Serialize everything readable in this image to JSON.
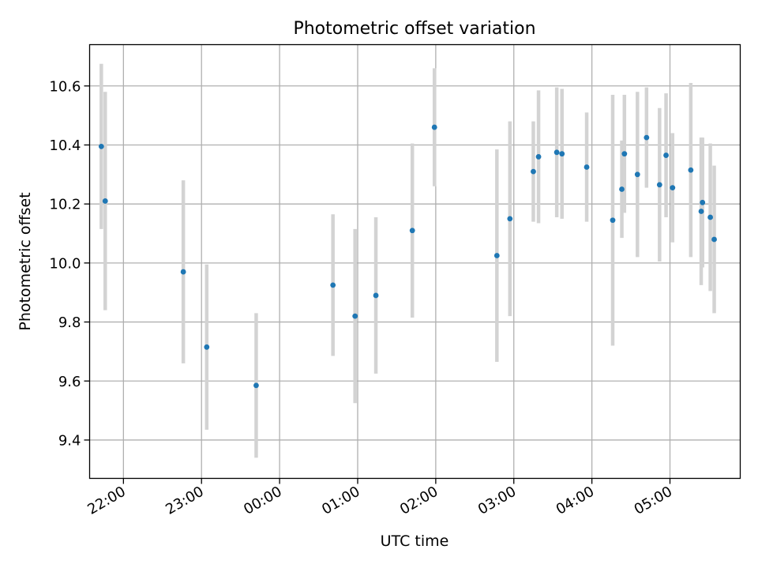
{
  "chart_data": {
    "type": "scatter",
    "title": "Photometric offset variation",
    "xlabel": "UTC time",
    "ylabel": "Photometric offset",
    "grid": true,
    "legend": "none",
    "x_tick_labels": [
      "22:00",
      "23:00",
      "00:00",
      "01:00",
      "02:00",
      "03:00",
      "04:00",
      "05:00"
    ],
    "y_ticks": [
      9.4,
      9.6,
      9.8,
      10.0,
      10.2,
      10.4,
      10.6
    ],
    "y_tick_labels": [
      "9.4",
      "9.6",
      "9.8",
      "10.0",
      "10.2",
      "10.4",
      "10.6"
    ],
    "xlim": [
      "21:34",
      "05:54"
    ],
    "ylim": [
      9.27,
      10.74
    ],
    "colors": {
      "point": "#1f77b4",
      "errorbar": "#d3d3d3",
      "grid": "#b0b0b0"
    },
    "series": [
      {
        "points": [
          {
            "x": "21:43",
            "y": 10.395,
            "yerr": 0.28
          },
          {
            "x": "21:46",
            "y": 10.21,
            "yerr": 0.37
          },
          {
            "x": "22:46",
            "y": 9.97,
            "yerr": 0.31
          },
          {
            "x": "23:04",
            "y": 9.715,
            "yerr": 0.28
          },
          {
            "x": "23:42",
            "y": 9.585,
            "yerr": 0.245
          },
          {
            "x": "00:41",
            "y": 9.925,
            "yerr": 0.24
          },
          {
            "x": "00:58",
            "y": 9.82,
            "yerr": 0.295
          },
          {
            "x": "01:14",
            "y": 9.89,
            "yerr": 0.265
          },
          {
            "x": "01:42",
            "y": 10.11,
            "yerr": 0.295
          },
          {
            "x": "01:59",
            "y": 10.46,
            "yerr": 0.2
          },
          {
            "x": "02:47",
            "y": 10.025,
            "yerr": 0.36
          },
          {
            "x": "02:57",
            "y": 10.15,
            "yerr": 0.33
          },
          {
            "x": "03:15",
            "y": 10.31,
            "yerr": 0.17
          },
          {
            "x": "03:19",
            "y": 10.36,
            "yerr": 0.225
          },
          {
            "x": "03:33",
            "y": 10.375,
            "yerr": 0.22
          },
          {
            "x": "03:37",
            "y": 10.37,
            "yerr": 0.22
          },
          {
            "x": "03:56",
            "y": 10.325,
            "yerr": 0.185
          },
          {
            "x": "04:16",
            "y": 10.145,
            "yerr": 0.425
          },
          {
            "x": "04:23",
            "y": 10.25,
            "yerr": 0.165
          },
          {
            "x": "04:25",
            "y": 10.37,
            "yerr": 0.2
          },
          {
            "x": "04:35",
            "y": 10.3,
            "yerr": 0.28
          },
          {
            "x": "04:42",
            "y": 10.425,
            "yerr": 0.17
          },
          {
            "x": "04:52",
            "y": 10.265,
            "yerr": 0.26
          },
          {
            "x": "04:57",
            "y": 10.365,
            "yerr": 0.21
          },
          {
            "x": "05:02",
            "y": 10.255,
            "yerr": 0.185
          },
          {
            "x": "05:16",
            "y": 10.315,
            "yerr": 0.295
          },
          {
            "x": "05:24",
            "y": 10.175,
            "yerr": 0.25
          },
          {
            "x": "05:25",
            "y": 10.205,
            "yerr": 0.22
          },
          {
            "x": "05:31",
            "y": 10.155,
            "yerr": 0.25
          },
          {
            "x": "05:34",
            "y": 10.08,
            "yerr": 0.25
          }
        ]
      }
    ]
  }
}
